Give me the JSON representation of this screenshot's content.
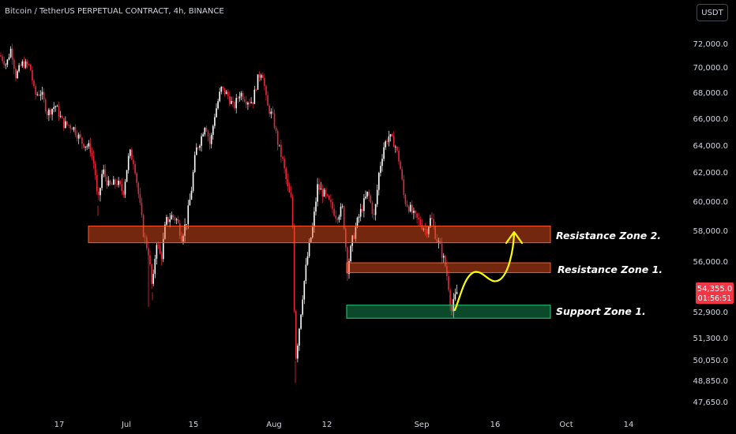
{
  "header": {
    "title": "Bitcoin / TetherUS PERPETUAL CONTRACT, 4h, BINANCE",
    "currency_button": "USDT"
  },
  "chart_data": {
    "type": "candlestick",
    "colors": {
      "up": "#ffffff",
      "down": "#e8283b",
      "bg": "#000000",
      "annotation": "#ffff00"
    },
    "y_axis_ticks": [
      "72,000.0",
      "70,000.0",
      "68,000.0",
      "66,000.0",
      "64,000.0",
      "62,000.0",
      "60,000.0",
      "58,000.0",
      "56,000.0",
      "52,900.0",
      "51,300.0",
      "50,050.0",
      "48,850.0",
      "47,650.0"
    ],
    "x_axis_ticks": [
      "17",
      "Jul",
      "15",
      "Aug",
      "12",
      "Sep",
      "16",
      "Oct",
      "14"
    ],
    "price_label": {
      "price": "54,355.0",
      "countdown": "01:56:51",
      "color": "#f23645"
    },
    "zones": [
      {
        "name": "Resistance Zone 2.",
        "low": 57200,
        "high": 58300,
        "color": "#ff5722"
      },
      {
        "name": "Resistance Zone 1.",
        "low": 55300,
        "high": 55900,
        "color": "#ff5722"
      },
      {
        "name": "Support Zone 1.",
        "low": 52500,
        "high": 53300,
        "color": "#22d07a"
      }
    ],
    "path": [
      [
        0,
        71000
      ],
      [
        8,
        70200
      ],
      [
        14,
        71600
      ],
      [
        20,
        69300
      ],
      [
        28,
        70300
      ],
      [
        38,
        70100
      ],
      [
        44,
        67800
      ],
      [
        52,
        68000
      ],
      [
        60,
        66400
      ],
      [
        70,
        67000
      ],
      [
        80,
        65600
      ],
      [
        92,
        65400
      ],
      [
        104,
        64200
      ],
      [
        114,
        63800
      ],
      [
        120,
        62300
      ],
      [
        124,
        59700
      ],
      [
        130,
        62200
      ],
      [
        138,
        61000
      ],
      [
        148,
        61300
      ],
      [
        156,
        60600
      ],
      [
        164,
        63500
      ],
      [
        170,
        62700
      ],
      [
        176,
        60200
      ],
      [
        182,
        57700
      ],
      [
        188,
        56600
      ],
      [
        193,
        54100
      ],
      [
        198,
        57400
      ],
      [
        204,
        56100
      ],
      [
        210,
        58600
      ],
      [
        218,
        59000
      ],
      [
        224,
        58700
      ],
      [
        230,
        57600
      ],
      [
        236,
        58600
      ],
      [
        242,
        60600
      ],
      [
        248,
        63600
      ],
      [
        254,
        64400
      ],
      [
        260,
        65700
      ],
      [
        266,
        64000
      ],
      [
        272,
        66300
      ],
      [
        280,
        68300
      ],
      [
        288,
        67800
      ],
      [
        296,
        66800
      ],
      [
        304,
        68000
      ],
      [
        312,
        67400
      ],
      [
        320,
        67300
      ],
      [
        326,
        69000
      ],
      [
        332,
        69800
      ],
      [
        338,
        67000
      ],
      [
        346,
        66000
      ],
      [
        352,
        64100
      ],
      [
        358,
        62800
      ],
      [
        364,
        60900
      ],
      [
        370,
        59800
      ],
      [
        374,
        50000
      ],
      [
        378,
        51500
      ],
      [
        384,
        54300
      ],
      [
        390,
        56500
      ],
      [
        396,
        58200
      ],
      [
        402,
        61000
      ],
      [
        410,
        60500
      ],
      [
        418,
        59800
      ],
      [
        426,
        59000
      ],
      [
        434,
        59500
      ],
      [
        440,
        55500
      ],
      [
        446,
        57300
      ],
      [
        452,
        58500
      ],
      [
        458,
        59500
      ],
      [
        466,
        60600
      ],
      [
        474,
        58800
      ],
      [
        480,
        62000
      ],
      [
        486,
        63900
      ],
      [
        492,
        64700
      ],
      [
        500,
        64100
      ],
      [
        506,
        62700
      ],
      [
        512,
        60100
      ],
      [
        518,
        59600
      ],
      [
        524,
        59000
      ],
      [
        532,
        58500
      ],
      [
        540,
        58000
      ],
      [
        546,
        58900
      ],
      [
        552,
        57600
      ],
      [
        558,
        56800
      ],
      [
        564,
        55700
      ],
      [
        568,
        54500
      ],
      [
        572,
        52900
      ],
      [
        576,
        53700
      ],
      [
        580,
        54355
      ]
    ]
  }
}
